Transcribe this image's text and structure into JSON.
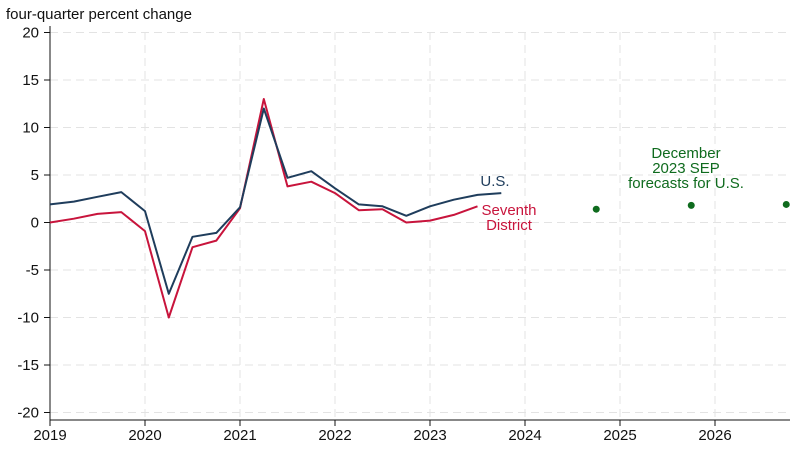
{
  "chart_data": {
    "type": "line",
    "ylabel": "four-quarter percent change",
    "ylim": [
      -21,
      21
    ],
    "yticks": [
      20,
      15,
      10,
      5,
      0,
      -5,
      -10,
      -15,
      -20
    ],
    "xlim": [
      2019.0,
      2026.85
    ],
    "xticks": [
      2019,
      2020,
      2021,
      2022,
      2023,
      2024,
      2025,
      2026
    ],
    "xtick_labels": [
      "2019",
      "2020",
      "2021",
      "2022",
      "2023",
      "2024",
      "2025",
      "2026"
    ],
    "grid": true,
    "series": [
      {
        "name": "U.S.",
        "label": "U.S.",
        "color": "#1f3d5c",
        "x": [
          2019.0,
          2019.25,
          2019.5,
          2019.75,
          2020.0,
          2020.25,
          2020.5,
          2020.75,
          2021.0,
          2021.25,
          2021.5,
          2021.75,
          2022.0,
          2022.25,
          2022.5,
          2022.75,
          2023.0,
          2023.25,
          2023.5,
          2023.75
        ],
        "values": [
          1.9,
          2.2,
          2.7,
          3.2,
          1.2,
          -7.5,
          -1.5,
          -1.1,
          1.6,
          12.0,
          4.7,
          5.4,
          3.6,
          1.9,
          1.7,
          0.7,
          1.7,
          2.4,
          2.9,
          3.1
        ]
      },
      {
        "name": "Seventh District",
        "label_lines": [
          "Seventh",
          "District"
        ],
        "color": "#c8143c",
        "x": [
          2019.0,
          2019.25,
          2019.5,
          2019.75,
          2020.0,
          2020.25,
          2020.5,
          2020.75,
          2021.0,
          2021.25,
          2021.5,
          2021.75,
          2022.0,
          2022.25,
          2022.5,
          2022.75,
          2023.0,
          2023.25,
          2023.5
        ],
        "values": [
          0.0,
          0.4,
          0.9,
          1.1,
          -0.9,
          -10.0,
          -2.6,
          -1.9,
          1.5,
          13.0,
          3.8,
          4.3,
          3.1,
          1.3,
          1.4,
          0.0,
          0.2,
          0.8,
          1.7
        ]
      }
    ],
    "forecast": {
      "name": "December 2023 SEP forecasts for U.S.",
      "label_lines": [
        "December",
        "2023 SEP",
        "forecasts for U.S."
      ],
      "color": "#0f6b1e",
      "x": [
        2024.75,
        2025.75,
        2026.75
      ],
      "values": [
        1.4,
        1.8,
        1.9
      ]
    }
  }
}
